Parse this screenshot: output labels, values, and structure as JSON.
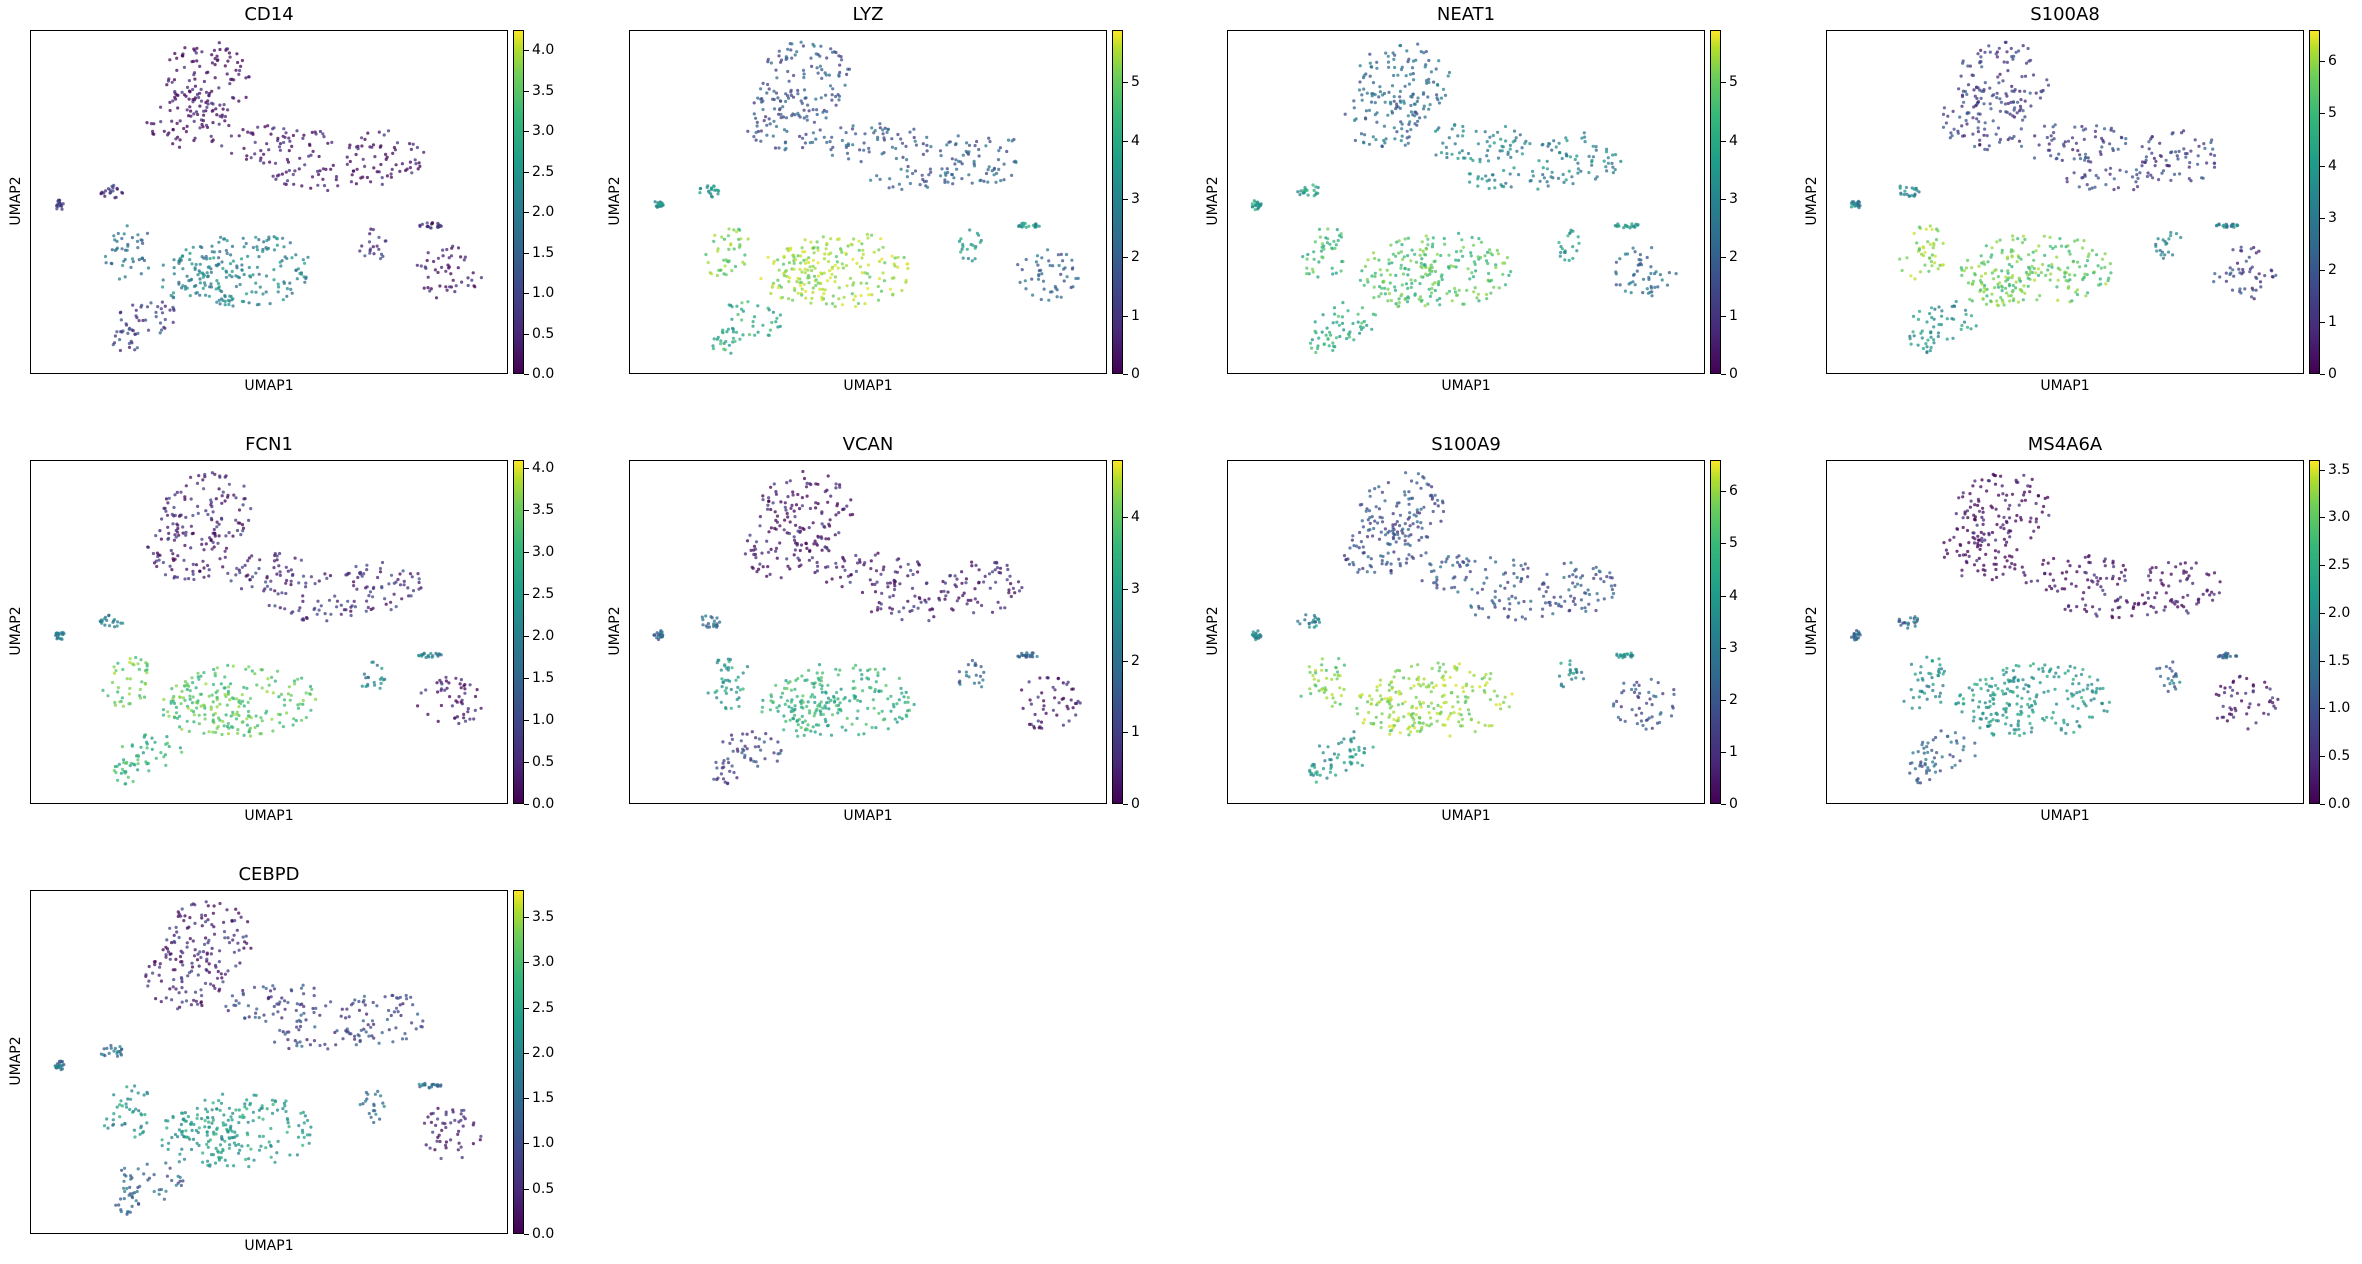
{
  "chart_data": [
    {
      "type": "scatter",
      "title": "CD14",
      "xlabel": "UMAP1",
      "ylabel": "UMAP2",
      "colormap": "viridis",
      "colorbar": {
        "vmin": 0,
        "vmax": 4.25,
        "ticks": [
          0.0,
          0.5,
          1.0,
          1.5,
          2.0,
          2.5,
          3.0,
          3.5,
          4.0
        ],
        "tick_labels": [
          "0.0",
          "0.5",
          "1.0",
          "1.5",
          "2.0",
          "2.5",
          "3.0",
          "3.5",
          "4.0"
        ]
      },
      "expression": {
        "top_cluster": 0.15,
        "top_arm": 0.2,
        "middle_main": 1.9,
        "middle_left_arm": 1.6,
        "bottom_left": 0.8,
        "right_cluster": 0.2,
        "small_islands": 0.6
      }
    },
    {
      "type": "scatter",
      "title": "LYZ",
      "xlabel": "UMAP1",
      "ylabel": "UMAP2",
      "colormap": "viridis",
      "colorbar": {
        "vmin": 0,
        "vmax": 5.9,
        "ticks": [
          0,
          1,
          2,
          3,
          4,
          5
        ],
        "tick_labels": [
          "0",
          "1",
          "2",
          "3",
          "4",
          "5"
        ]
      },
      "expression": {
        "top_cluster": 1.6,
        "top_arm": 1.7,
        "middle_main": 5.0,
        "middle_left_arm": 4.6,
        "bottom_left": 3.6,
        "right_cluster": 1.9,
        "small_islands": 3.0
      }
    },
    {
      "type": "scatter",
      "title": "NEAT1",
      "xlabel": "UMAP1",
      "ylabel": "UMAP2",
      "colormap": "viridis",
      "colorbar": {
        "vmin": 0,
        "vmax": 5.9,
        "ticks": [
          0,
          1,
          2,
          3,
          4,
          5
        ],
        "tick_labels": [
          "0",
          "1",
          "2",
          "3",
          "4",
          "5"
        ]
      },
      "expression": {
        "top_cluster": 2.0,
        "top_arm": 2.6,
        "middle_main": 4.2,
        "middle_left_arm": 4.0,
        "bottom_left": 3.6,
        "right_cluster": 2.1,
        "small_islands": 3.2
      }
    },
    {
      "type": "scatter",
      "title": "S100A8",
      "xlabel": "UMAP1",
      "ylabel": "UMAP2",
      "colormap": "viridis",
      "colorbar": {
        "vmin": 0,
        "vmax": 6.6,
        "ticks": [
          0,
          1,
          2,
          3,
          4,
          5,
          6
        ],
        "tick_labels": [
          "0",
          "1",
          "2",
          "3",
          "4",
          "5",
          "6"
        ]
      },
      "expression": {
        "top_cluster": 1.2,
        "top_arm": 1.3,
        "middle_main": 5.0,
        "middle_left_arm": 5.4,
        "bottom_left": 3.3,
        "right_cluster": 1.3,
        "small_islands": 2.8
      }
    },
    {
      "type": "scatter",
      "title": "FCN1",
      "xlabel": "UMAP1",
      "ylabel": "UMAP2",
      "colormap": "viridis",
      "colorbar": {
        "vmin": 0,
        "vmax": 4.1,
        "ticks": [
          0.0,
          0.5,
          1.0,
          1.5,
          2.0,
          2.5,
          3.0,
          3.5,
          4.0
        ],
        "tick_labels": [
          "0.0",
          "0.5",
          "1.0",
          "1.5",
          "2.0",
          "2.5",
          "3.0",
          "3.5",
          "4.0"
        ]
      },
      "expression": {
        "top_cluster": 0.4,
        "top_arm": 0.5,
        "middle_main": 3.0,
        "middle_left_arm": 3.2,
        "bottom_left": 2.6,
        "right_cluster": 0.3,
        "small_islands": 1.8
      }
    },
    {
      "type": "scatter",
      "title": "VCAN",
      "xlabel": "UMAP1",
      "ylabel": "UMAP2",
      "colormap": "viridis",
      "colorbar": {
        "vmin": 0,
        "vmax": 4.8,
        "ticks": [
          0,
          1,
          2,
          3,
          4
        ],
        "tick_labels": [
          "0",
          "1",
          "2",
          "3",
          "4"
        ]
      },
      "expression": {
        "top_cluster": 0.3,
        "top_arm": 0.4,
        "middle_main": 3.0,
        "middle_left_arm": 2.6,
        "bottom_left": 1.0,
        "right_cluster": 0.3,
        "small_islands": 1.6
      }
    },
    {
      "type": "scatter",
      "title": "S100A9",
      "xlabel": "UMAP1",
      "ylabel": "UMAP2",
      "colormap": "viridis",
      "colorbar": {
        "vmin": 0,
        "vmax": 6.6,
        "ticks": [
          0,
          1,
          2,
          3,
          4,
          5,
          6
        ],
        "tick_labels": [
          "0",
          "1",
          "2",
          "3",
          "4",
          "5",
          "6"
        ]
      },
      "expression": {
        "top_cluster": 1.6,
        "top_arm": 1.8,
        "middle_main": 5.5,
        "middle_left_arm": 5.2,
        "bottom_left": 3.4,
        "right_cluster": 1.6,
        "small_islands": 3.0
      }
    },
    {
      "type": "scatter",
      "title": "MS4A6A",
      "xlabel": "UMAP1",
      "ylabel": "UMAP2",
      "colormap": "viridis",
      "colorbar": {
        "vmin": 0,
        "vmax": 3.6,
        "ticks": [
          0.0,
          0.5,
          1.0,
          1.5,
          2.0,
          2.5,
          3.0,
          3.5
        ],
        "tick_labels": [
          "0.0",
          "0.5",
          "1.0",
          "1.5",
          "2.0",
          "2.5",
          "3.0",
          "3.5"
        ]
      },
      "expression": {
        "top_cluster": 0.1,
        "top_arm": 0.2,
        "middle_main": 1.9,
        "middle_left_arm": 1.7,
        "bottom_left": 1.1,
        "right_cluster": 0.2,
        "small_islands": 1.2
      }
    },
    {
      "type": "scatter",
      "title": "CEBPD",
      "xlabel": "UMAP1",
      "ylabel": "UMAP2",
      "colormap": "viridis",
      "colorbar": {
        "vmin": 0,
        "vmax": 3.8,
        "ticks": [
          0.0,
          0.5,
          1.0,
          1.5,
          2.0,
          2.5,
          3.0,
          3.5
        ],
        "tick_labels": [
          "0.0",
          "0.5",
          "1.0",
          "1.5",
          "2.0",
          "2.5",
          "3.0",
          "3.5"
        ]
      },
      "expression": {
        "top_cluster": 0.4,
        "top_arm": 0.8,
        "middle_main": 2.1,
        "middle_left_arm": 1.9,
        "bottom_left": 1.2,
        "right_cluster": 0.4,
        "small_islands": 1.4
      }
    }
  ]
}
